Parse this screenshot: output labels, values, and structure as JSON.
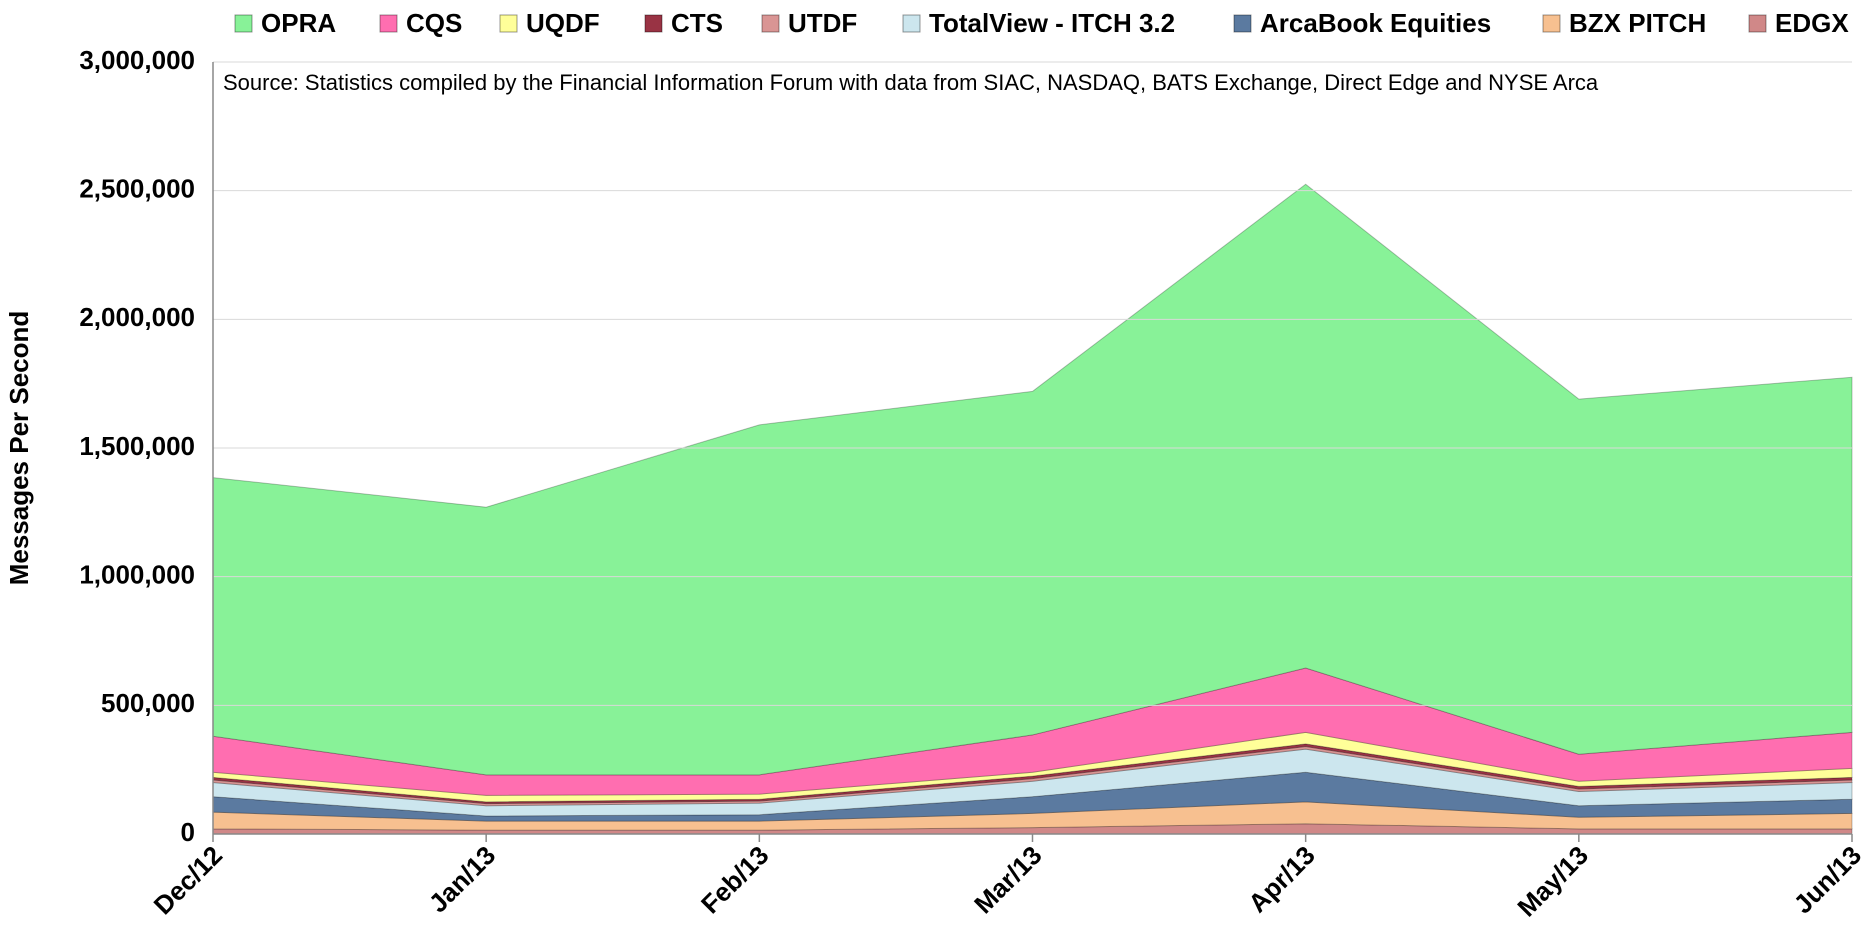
{
  "chart_data": {
    "type": "stacked_area",
    "y_label": "Messages Per Second",
    "annotation": "Source: Statistics compiled by the Financial Information Forum with data from SIAC, NASDAQ, BATS Exchange, Direct Edge and NYSE Arca",
    "categories": [
      "Dec/12",
      "Jan/13",
      "Feb/13",
      "Mar/13",
      "Apr/13",
      "May/13",
      "Jun/13"
    ],
    "series": [
      {
        "name": "OPRA",
        "color": "#88f298",
        "values": [
          1005000,
          1040000,
          1360000,
          1335000,
          1880000,
          1380000,
          1380000
        ]
      },
      {
        "name": "CQS",
        "color": "#ff6eb0",
        "values": [
          140000,
          80000,
          75000,
          145000,
          250000,
          105000,
          140000
        ]
      },
      {
        "name": "UQDF",
        "color": "#ffff99",
        "values": [
          20000,
          25000,
          20000,
          15000,
          45000,
          20000,
          35000
        ]
      },
      {
        "name": "CTS",
        "color": "#993344",
        "values": [
          10000,
          7000,
          7000,
          10000,
          10000,
          10000,
          10000
        ]
      },
      {
        "name": "UTDF",
        "color": "#d99594",
        "values": [
          10000,
          8000,
          8000,
          10000,
          10000,
          10000,
          10000
        ]
      },
      {
        "name": "TotalView - ITCH 3.2",
        "color": "#cce6ee",
        "values": [
          55000,
          40000,
          45000,
          60000,
          90000,
          55000,
          65000
        ]
      },
      {
        "name": "ArcaBook Equities",
        "color": "#5b7aa0",
        "values": [
          60000,
          20000,
          25000,
          65000,
          115000,
          45000,
          55000
        ]
      },
      {
        "name": "BZX PITCH",
        "color": "#f7c090",
        "values": [
          65000,
          35000,
          35000,
          55000,
          85000,
          45000,
          60000
        ]
      },
      {
        "name": "EDGX",
        "color": "#d08888",
        "values": [
          20000,
          15000,
          15000,
          25000,
          40000,
          20000,
          20000
        ]
      }
    ],
    "ylim": [
      0,
      3000000
    ],
    "yticks": [
      0,
      {
        "value": 500000,
        "label": "500,000"
      },
      {
        "value": 1000000,
        "label": "1,000,000"
      },
      {
        "value": 1500000,
        "label": "1,500,000"
      },
      {
        "value": 2000000,
        "label": "2,000,000"
      },
      {
        "value": 2500000,
        "label": "2,500,000"
      },
      {
        "value": 3000000,
        "label": "3,000,000"
      }
    ],
    "grid": true,
    "legend": "top"
  }
}
